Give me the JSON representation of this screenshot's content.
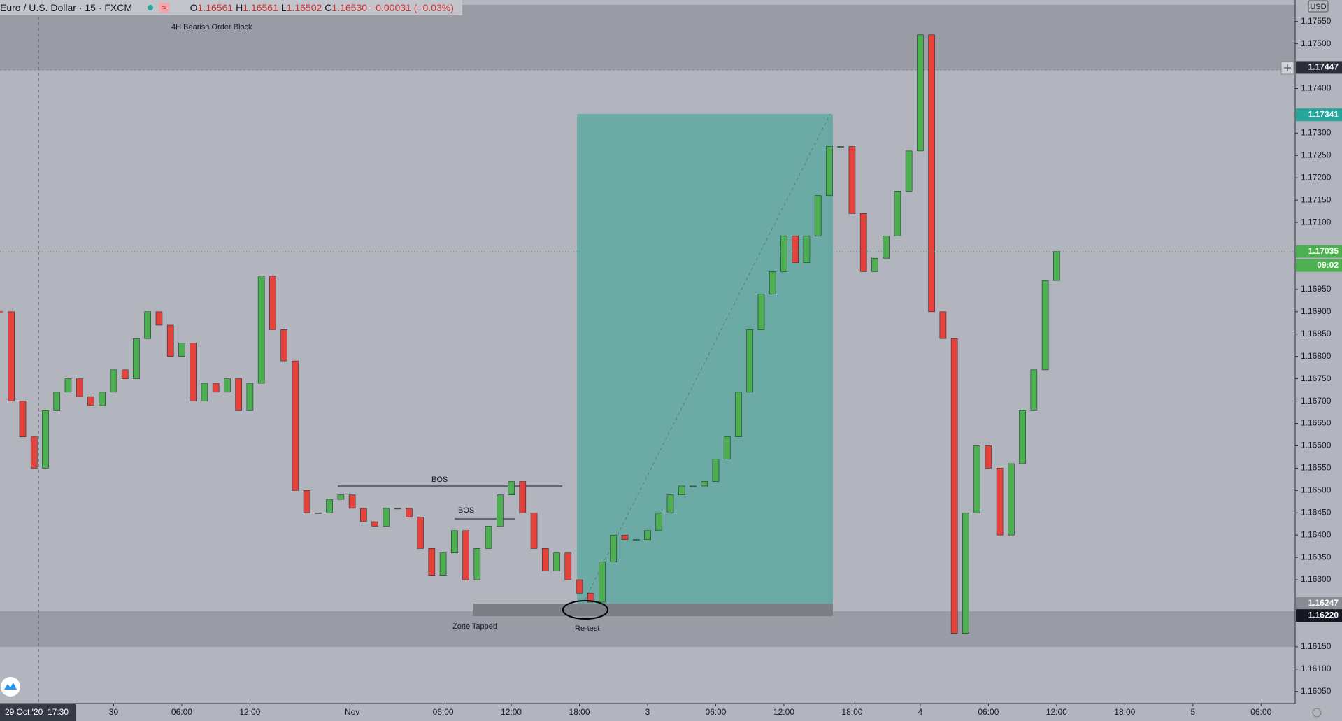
{
  "header": {
    "symbol": "Euro / U.S. Dollar · 15 · FXCM",
    "ohlc": [
      {
        "key": "O",
        "value": "1.16561"
      },
      {
        "key": "H",
        "value": "1.16561"
      },
      {
        "key": "L",
        "value": "1.16502"
      },
      {
        "key": "C",
        "value": "1.16530"
      }
    ],
    "change": "−0.00031 (−0.03%)"
  },
  "annotations": {
    "order_block": "4H Bearish Order Block",
    "bos_1": "BOS",
    "bos_2": "BOS",
    "zone_tapped": "Zone Tapped",
    "retest": "Re-test"
  },
  "chart_data": {
    "type": "candlestick",
    "up_color": "#4caf50",
    "down_color": "#e5423b",
    "grid": false,
    "close": [
      1.169,
      1.167,
      1.1662,
      1.1655,
      1.1668,
      1.1672,
      1.1675,
      1.1671,
      1.1669,
      1.1672,
      1.1677,
      1.1675,
      1.1684,
      1.169,
      1.1687,
      1.168,
      1.1683,
      1.167,
      1.1674,
      1.1672,
      1.1675,
      1.1668,
      1.1674,
      1.1698,
      1.1686,
      1.1679,
      1.165,
      1.1645,
      1.1645,
      1.1648,
      1.1649,
      1.1646,
      1.1643,
      1.1642,
      1.1646,
      1.1646,
      1.1644,
      1.1637,
      1.1631,
      1.1636,
      1.1641,
      1.163,
      1.1637,
      1.1642,
      1.1649,
      1.1652,
      1.1645,
      1.1637,
      1.1632,
      1.1636,
      1.163,
      1.1627,
      1.1625,
      1.1634,
      1.164,
      1.1639,
      1.1639,
      1.1641,
      1.1645,
      1.1649,
      1.1651,
      1.1651,
      1.1652,
      1.1657,
      1.1662,
      1.1672,
      1.1686,
      1.1694,
      1.1699,
      1.1707,
      1.1701,
      1.1707,
      1.1716,
      1.1727,
      1.1727,
      1.1712,
      1.1699,
      1.1702,
      1.1707,
      1.1717,
      1.1726,
      1.1752,
      1.169,
      1.1684,
      1.1618,
      1.1645,
      1.166,
      1.1655,
      1.164,
      1.1656,
      1.1668,
      1.1677,
      1.1697,
      1.17035
    ],
    "xlim": [
      0,
      114
    ],
    "xticks": [
      {
        "value": 10,
        "label": "30"
      },
      {
        "value": 16,
        "label": "06:00"
      },
      {
        "value": 22,
        "label": "12:00"
      },
      {
        "value": 31,
        "label": "Nov"
      },
      {
        "value": 39,
        "label": "06:00"
      },
      {
        "value": 45,
        "label": "12:00"
      },
      {
        "value": 51,
        "label": "18:00"
      },
      {
        "value": 57,
        "label": "3"
      },
      {
        "value": 63,
        "label": "06:00"
      },
      {
        "value": 69,
        "label": "12:00"
      },
      {
        "value": 75,
        "label": "18:00"
      },
      {
        "value": 81,
        "label": "4"
      },
      {
        "value": 87,
        "label": "06:00"
      },
      {
        "value": 93,
        "label": "12:00"
      },
      {
        "value": 99,
        "label": "18:00"
      },
      {
        "value": 105,
        "label": "5"
      },
      {
        "value": 111,
        "label": "06:00"
      }
    ],
    "cursor": {
      "value": 3.4,
      "label": "29 Oct '20  17:30"
    },
    "ylim": [
      1.16023,
      1.17598
    ],
    "yticks": [
      {
        "value": 1.1755,
        "label": "1.17550"
      },
      {
        "value": 1.175,
        "label": "1.17500"
      },
      {
        "value": 1.174,
        "label": "1.17400"
      },
      {
        "value": 1.173,
        "label": "1.17300"
      },
      {
        "value": 1.1725,
        "label": "1.17250"
      },
      {
        "value": 1.172,
        "label": "1.17200"
      },
      {
        "value": 1.1715,
        "label": "1.17150"
      },
      {
        "value": 1.171,
        "label": "1.17100"
      },
      {
        "value": 1.1695,
        "label": "1.16950"
      },
      {
        "value": 1.169,
        "label": "1.16900"
      },
      {
        "value": 1.1685,
        "label": "1.16850"
      },
      {
        "value": 1.168,
        "label": "1.16800"
      },
      {
        "value": 1.1675,
        "label": "1.16750"
      },
      {
        "value": 1.167,
        "label": "1.16700"
      },
      {
        "value": 1.1665,
        "label": "1.16650"
      },
      {
        "value": 1.166,
        "label": "1.16600"
      },
      {
        "value": 1.1655,
        "label": "1.16550"
      },
      {
        "value": 1.165,
        "label": "1.16500"
      },
      {
        "value": 1.1645,
        "label": "1.16450"
      },
      {
        "value": 1.164,
        "label": "1.16400"
      },
      {
        "value": 1.1635,
        "label": "1.16350"
      },
      {
        "value": 1.163,
        "label": "1.16300"
      },
      {
        "value": 1.1615,
        "label": "1.16150"
      },
      {
        "value": 1.161,
        "label": "1.16100"
      },
      {
        "value": 1.1605,
        "label": "1.16050"
      }
    ],
    "price_labels": [
      {
        "value": 1.17447,
        "color": "#2a2e39"
      },
      {
        "value": 1.17341,
        "color": "#26a69a"
      },
      {
        "value": 1.17035,
        "color": "#4caf50"
      },
      {
        "value": 1.16247,
        "color": "#8a8c94"
      },
      {
        "value": 1.1622,
        "label": "1.16220",
        "color": "#131722"
      }
    ],
    "countdown": "09:02",
    "currency": "USD"
  }
}
